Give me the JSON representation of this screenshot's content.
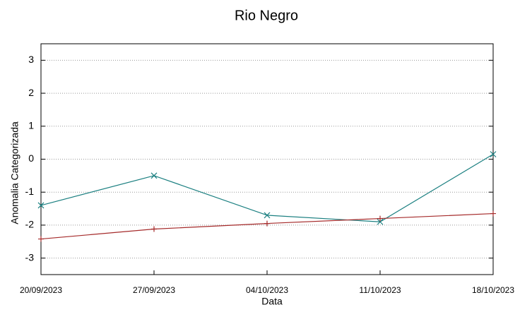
{
  "chart_data": {
    "type": "line",
    "title": "Rio Negro",
    "xlabel": "Data",
    "ylabel": "Anomalia Categorizada",
    "categories": [
      "20/09/2023",
      "27/09/2023",
      "04/10/2023",
      "11/10/2023",
      "18/10/2023"
    ],
    "series": [
      {
        "color": "#1a7f80",
        "marker": "x",
        "values": [
          -1.4,
          -0.5,
          -1.7,
          -1.9,
          0.15
        ]
      },
      {
        "color": "#a52a2a",
        "marker": "+",
        "values": [
          -2.42,
          -2.12,
          -1.95,
          -1.8,
          -1.65
        ]
      }
    ],
    "ylim": [
      -3.5,
      3.5
    ],
    "yticks": [
      -3,
      -2,
      -1,
      0,
      1,
      2,
      3
    ],
    "grid": true
  }
}
